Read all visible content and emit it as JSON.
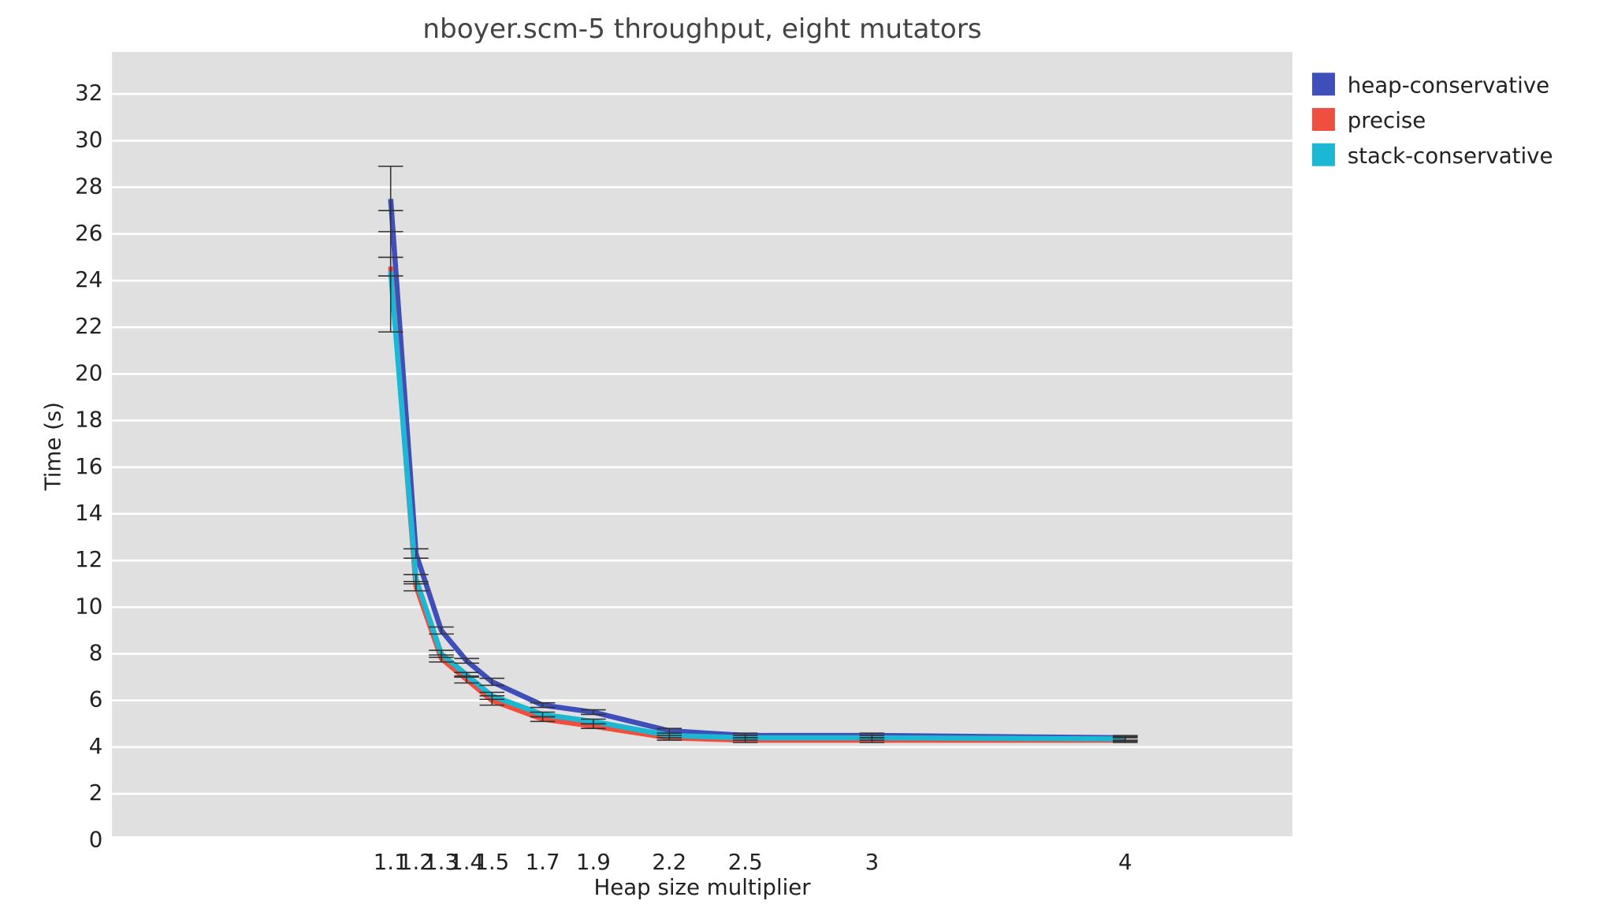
{
  "chart_data": {
    "type": "line",
    "title": "nboyer.scm-5 throughput, eight mutators",
    "x_label": "Heap size multiplier",
    "y_label": "Time (s)",
    "x": [
      1.1,
      1.2,
      1.3,
      1.4,
      1.5,
      1.7,
      1.9,
      2.2,
      2.5,
      3,
      4
    ],
    "xlim": [
      0,
      4.66
    ],
    "xticks": [
      1.1,
      1.2,
      1.3,
      1.4,
      1.5,
      1.7,
      1.9,
      2.2,
      2.5,
      3,
      4
    ],
    "ylim": [
      0,
      33.8
    ],
    "yticks": [
      0,
      2,
      4,
      6,
      8,
      10,
      12,
      14,
      16,
      18,
      20,
      22,
      24,
      26,
      28,
      30,
      32
    ],
    "grid": true,
    "legend": "right",
    "series": [
      {
        "name": "heap-conservative",
        "color": "#3f4fba",
        "values": [
          27.5,
          12.3,
          9.0,
          7.7,
          6.8,
          5.8,
          5.5,
          4.7,
          4.5,
          4.5,
          4.4
        ],
        "errors": [
          1.4,
          0.2,
          0.15,
          0.1,
          0.15,
          0.1,
          0.1,
          0.1,
          0.1,
          0.1,
          0.1
        ]
      },
      {
        "name": "precise",
        "color": "#f04e3e",
        "values": [
          24.6,
          10.9,
          7.8,
          6.9,
          6.0,
          5.2,
          4.9,
          4.4,
          4.3,
          4.3,
          4.3
        ],
        "errors": [
          0.4,
          0.2,
          0.15,
          0.15,
          0.2,
          0.1,
          0.1,
          0.1,
          0.1,
          0.1,
          0.1
        ]
      },
      {
        "name": "stack-conservative",
        "color": "#1bb8d4",
        "values": [
          24.4,
          11.2,
          8.0,
          7.1,
          6.2,
          5.4,
          5.1,
          4.5,
          4.4,
          4.4,
          4.35
        ],
        "errors": [
          2.6,
          0.2,
          0.15,
          0.1,
          0.15,
          0.1,
          0.1,
          0.1,
          0.1,
          0.1,
          0.1
        ]
      }
    ]
  }
}
